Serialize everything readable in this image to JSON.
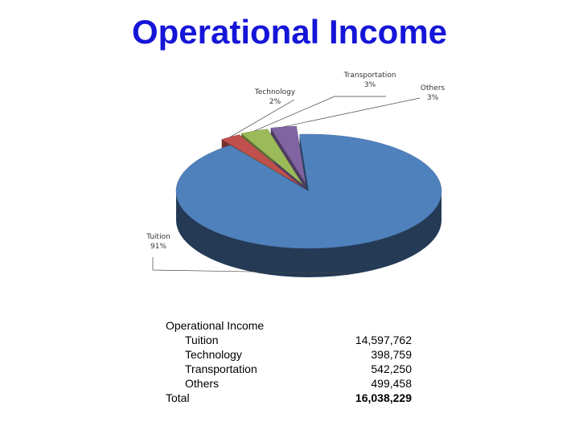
{
  "title": "Operational Income",
  "chart_data": {
    "type": "pie",
    "title": "",
    "three_d": true,
    "legend": "none",
    "slices": [
      {
        "label": "Tuition",
        "percent_label": "91%",
        "value": 14597762,
        "color": "#4f81bd"
      },
      {
        "label": "Technology",
        "percent_label": "2%",
        "value": 398759,
        "color": "#c0504d"
      },
      {
        "label": "Transportation",
        "percent_label": "3%",
        "value": 542250,
        "color": "#9bbb59"
      },
      {
        "label": "Others",
        "percent_label": "3%",
        "value": 499458,
        "color": "#8064a2"
      }
    ]
  },
  "table": {
    "header": "Operational Income",
    "rows": [
      {
        "label": "Tuition",
        "value": "14,597,762"
      },
      {
        "label": "Technology",
        "value": "398,759"
      },
      {
        "label": "Transportation",
        "value": "542,250"
      },
      {
        "label": "Others",
        "value": "499,458"
      }
    ],
    "total": {
      "label": "Total",
      "value": "16,038,229"
    }
  }
}
